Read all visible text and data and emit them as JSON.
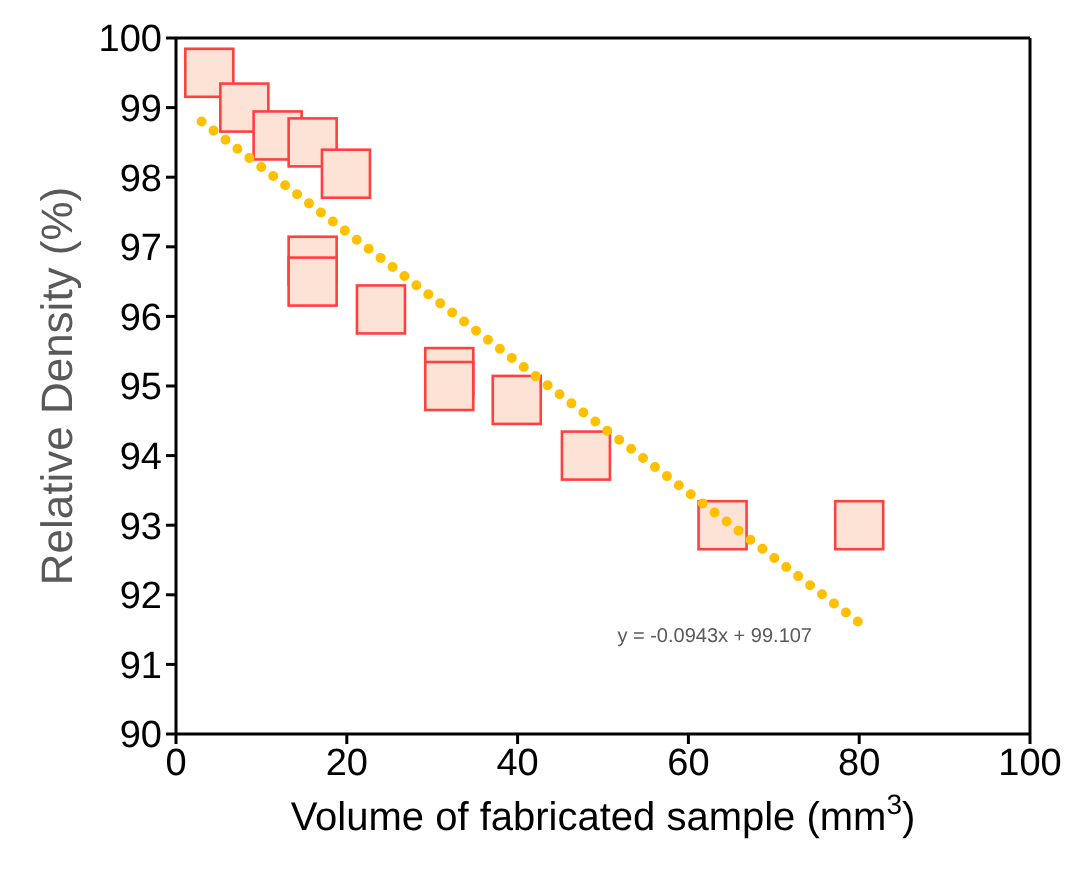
{
  "chart_data": {
    "type": "scatter",
    "xlabel": "Volume of fabricated sample  (mm$^{3}$)",
    "ylabel": "Relative Density (%)",
    "xlim": [
      0,
      100
    ],
    "xticks": [
      0,
      20,
      40,
      60,
      80,
      100
    ],
    "ylim": [
      90,
      100
    ],
    "yticks": [
      90,
      91,
      92,
      93,
      94,
      95,
      96,
      97,
      98,
      99,
      100
    ],
    "series": [
      {
        "color": "#ff4040",
        "marker": "square",
        "x": [
          3.9,
          8,
          11.9,
          16,
          19.9,
          16,
          16,
          24,
          32,
          32,
          39.9,
          48,
          64,
          80
        ],
        "values": [
          99.5,
          99.0,
          98.6,
          98.5,
          98.05,
          96.8,
          96.5,
          96.1,
          95.2,
          95.0,
          94.8,
          94.0,
          93.0,
          93.0
        ]
      },
      {
        "type": "line",
        "color": "#ffc000",
        "line_style": "dotted",
        "marker": "none",
        "x": [
          3,
          80
        ],
        "values": [
          98.8,
          91.6
        ]
      }
    ],
    "annotations": [
      "y = -0.0943x + 99.107"
    ]
  }
}
